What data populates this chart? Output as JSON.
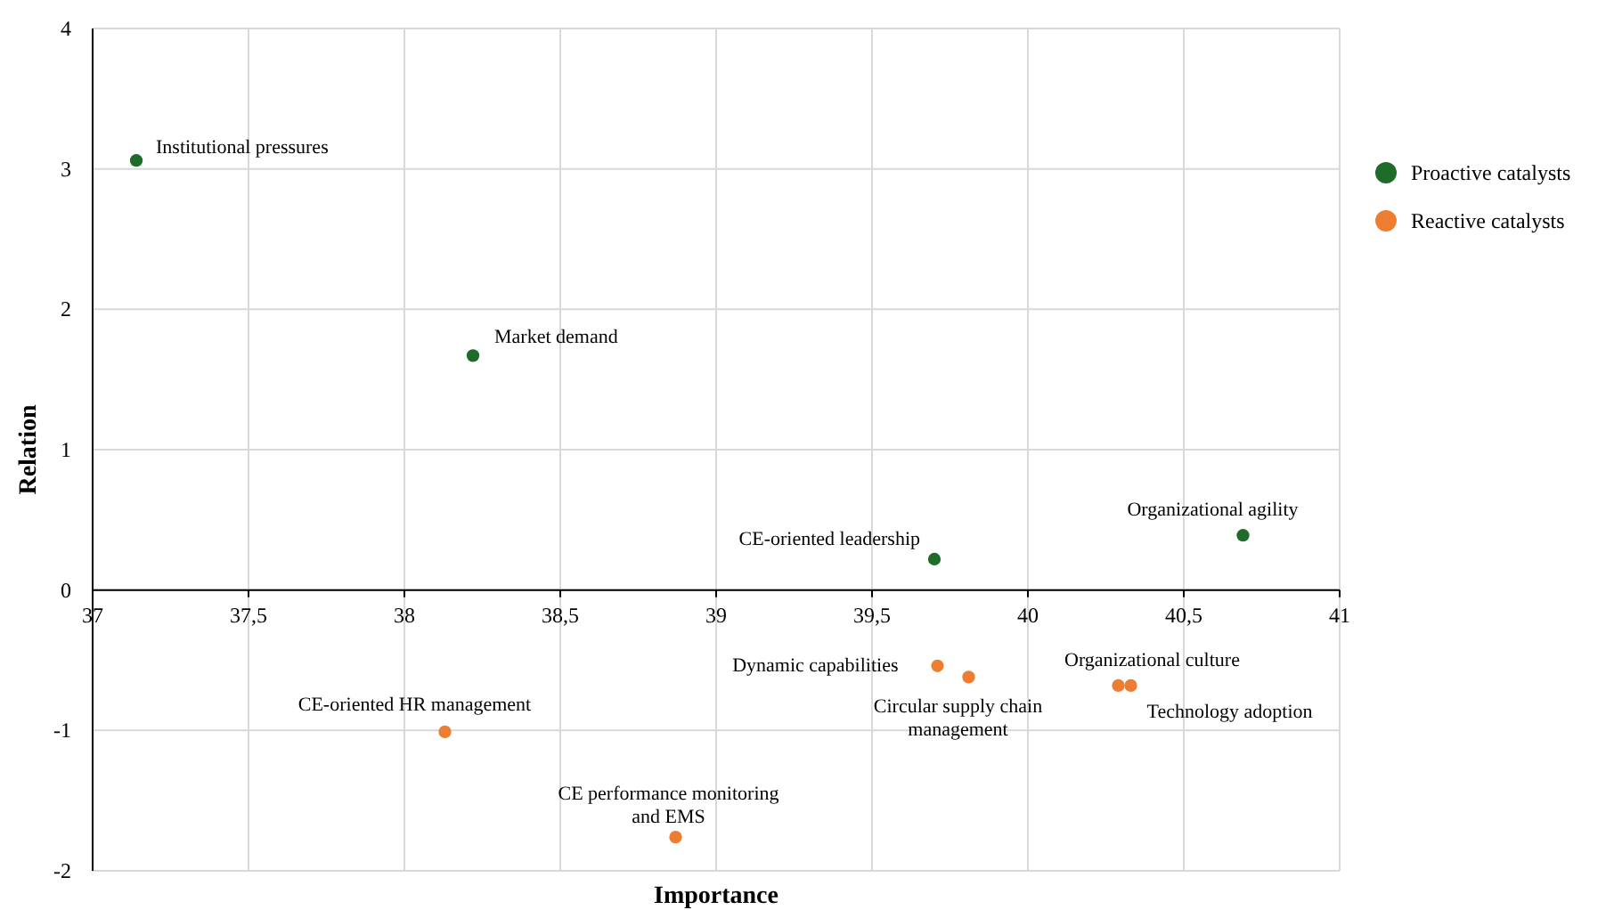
{
  "chart_data": {
    "type": "scatter",
    "xlabel": "Importance",
    "ylabel": "Relation",
    "xlim": [
      37,
      41
    ],
    "xticks": [
      37,
      {
        "value": 37.5,
        "label": "37,5"
      },
      38,
      {
        "value": 38.5,
        "label": "38,5"
      },
      39,
      {
        "value": 39.5,
        "label": "39,5"
      },
      40,
      {
        "value": 40.5,
        "label": "40,5"
      },
      41
    ],
    "ylim": [
      -2,
      4
    ],
    "yticks": [
      -2,
      -1,
      0,
      1,
      2,
      3,
      4
    ],
    "grid": true,
    "legend": "right",
    "marker": "circle",
    "series": [
      {
        "name": "Proactive catalysts",
        "color": "#1e6b2a",
        "x": [
          37.14,
          38.22,
          39.7,
          40.69
        ],
        "values": [
          3.06,
          1.67,
          0.22,
          0.39
        ]
      },
      {
        "name": "Reactive catalysts",
        "color": "#ed7d31",
        "x": [
          38.13,
          38.87,
          39.71,
          39.81,
          40.29,
          40.33
        ],
        "values": [
          -1.01,
          -1.76,
          -0.54,
          -0.62,
          -0.68,
          -0.68
        ]
      }
    ],
    "annotations": [
      {
        "text": "Institutional pressures",
        "x": 37.14,
        "y": 3.06
      },
      {
        "text": "Market demand",
        "x": 38.22,
        "y": 1.67
      },
      {
        "text": "CE-oriented leadership",
        "x": 39.7,
        "y": 0.22
      },
      {
        "text": "Organizational agility",
        "x": 40.69,
        "y": 0.39
      },
      {
        "text": "CE-oriented HR management",
        "x": 38.13,
        "y": -1.01
      },
      {
        "text": "CE performance monitoring and EMS",
        "x": 38.87,
        "y": -1.76
      },
      {
        "text": "Dynamic capabilities",
        "x": 39.71,
        "y": -0.54
      },
      {
        "text": "Circular supply chain management",
        "x": 39.81,
        "y": -0.62
      },
      {
        "text": "Organizational culture",
        "x": 40.29,
        "y": -0.68
      },
      {
        "text": "Technology adoption",
        "x": 40.33,
        "y": -0.68
      }
    ]
  }
}
